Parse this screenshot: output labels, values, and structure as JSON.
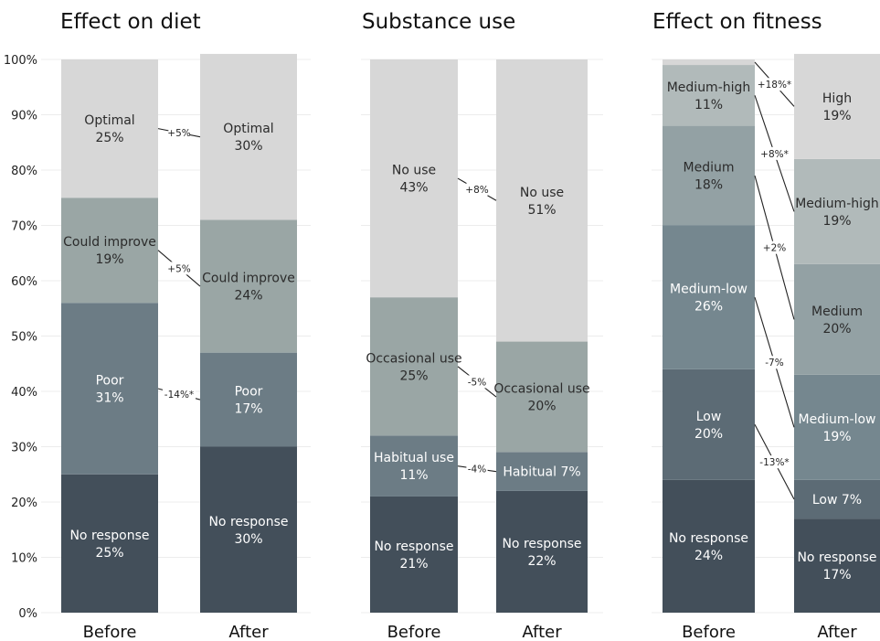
{
  "chart_data": {
    "type": "bar",
    "stacked": true,
    "ylim": [
      0,
      100
    ],
    "y_ticks": [
      "0%",
      "10%",
      "20%",
      "30%",
      "40%",
      "50%",
      "60%",
      "70%",
      "80%",
      "90%",
      "100%"
    ],
    "colors": {
      "No response": "#434f5a",
      "Poor": "#6c7c85",
      "Could improve": "#9aa6a5",
      "Optimal": "#d7d7d7",
      "Habitual use": "#6c7c85",
      "Occasional use": "#9aa6a5",
      "No use": "#d7d7d7",
      "Low": "#5c6b75",
      "Medium-low": "#75878f",
      "Medium": "#93a1a4",
      "Medium-high": "#b1baba",
      "High": "#d7d7d7"
    },
    "panels": [
      {
        "title": "Effect on diet",
        "bars": [
          {
            "category": "Before",
            "segments": [
              {
                "name": "No response",
                "value": 25,
                "label": "No response\n25%"
              },
              {
                "name": "Poor",
                "value": 31,
                "label": "Poor\n31%"
              },
              {
                "name": "Could improve",
                "value": 19,
                "label": "Could improve\n19%"
              },
              {
                "name": "Optimal",
                "value": 25,
                "label": "Optimal\n25%"
              }
            ]
          },
          {
            "category": "After",
            "segments": [
              {
                "name": "No response",
                "value": 30,
                "label": "No response\n30%"
              },
              {
                "name": "Poor",
                "value": 17,
                "label": "Poor\n17%"
              },
              {
                "name": "Could improve",
                "value": 24,
                "label": "Could improve\n24%"
              },
              {
                "name": "Optimal",
                "value": 30,
                "label": "Optimal\n30%"
              }
            ]
          }
        ],
        "changes": [
          {
            "series": "Poor",
            "label": "-14%*"
          },
          {
            "series": "Could improve",
            "label": "+5%"
          },
          {
            "series": "Optimal",
            "label": "+5%"
          }
        ]
      },
      {
        "title": "Substance use",
        "bars": [
          {
            "category": "Before",
            "segments": [
              {
                "name": "No response",
                "value": 21,
                "label": "No response\n21%"
              },
              {
                "name": "Habitual use",
                "value": 11,
                "label": "Habitual use\n11%"
              },
              {
                "name": "Occasional use",
                "value": 25,
                "label": "Occasional use\n25%"
              },
              {
                "name": "No use",
                "value": 43,
                "label": "No use\n43%"
              }
            ]
          },
          {
            "category": "After",
            "segments": [
              {
                "name": "No response",
                "value": 22,
                "label": "No response\n22%"
              },
              {
                "name": "Habitual use",
                "value": 7,
                "label": "Habitual 7%"
              },
              {
                "name": "Occasional use",
                "value": 20,
                "label": "Occasional use\n20%"
              },
              {
                "name": "No use",
                "value": 51,
                "label": "No use\n51%"
              }
            ]
          }
        ],
        "changes": [
          {
            "series": "Habitual use",
            "label": "-4%"
          },
          {
            "series": "Occasional use",
            "label": "-5%"
          },
          {
            "series": "No use",
            "label": "+8%"
          }
        ]
      },
      {
        "title": "Effect on fitness",
        "bars": [
          {
            "category": "Before",
            "segments": [
              {
                "name": "No response",
                "value": 24,
                "label": "No response\n24%"
              },
              {
                "name": "Low",
                "value": 20,
                "label": "Low\n20%"
              },
              {
                "name": "Medium-low",
                "value": 26,
                "label": "Medium-low\n26%"
              },
              {
                "name": "Medium",
                "value": 18,
                "label": "Medium\n18%"
              },
              {
                "name": "Medium-high",
                "value": 11,
                "label": "Medium-high\n11%"
              },
              {
                "name": "High",
                "value": 1,
                "label": ""
              }
            ]
          },
          {
            "category": "After",
            "segments": [
              {
                "name": "No response",
                "value": 17,
                "label": "No response\n17%"
              },
              {
                "name": "Low",
                "value": 7,
                "label": "Low 7%"
              },
              {
                "name": "Medium-low",
                "value": 19,
                "label": "Medium-low\n19%"
              },
              {
                "name": "Medium",
                "value": 20,
                "label": "Medium\n20%"
              },
              {
                "name": "Medium-high",
                "value": 19,
                "label": "Medium-high\n19%"
              },
              {
                "name": "High",
                "value": 19,
                "label": "High\n19%"
              }
            ]
          }
        ],
        "changes": [
          {
            "series": "Low",
            "label": "-13%*"
          },
          {
            "series": "Medium-low",
            "label": "-7%"
          },
          {
            "series": "Medium",
            "label": "+2%"
          },
          {
            "series": "Medium-high",
            "label": "+8%*"
          },
          {
            "series": "High",
            "label": "+18%*"
          }
        ]
      }
    ]
  }
}
